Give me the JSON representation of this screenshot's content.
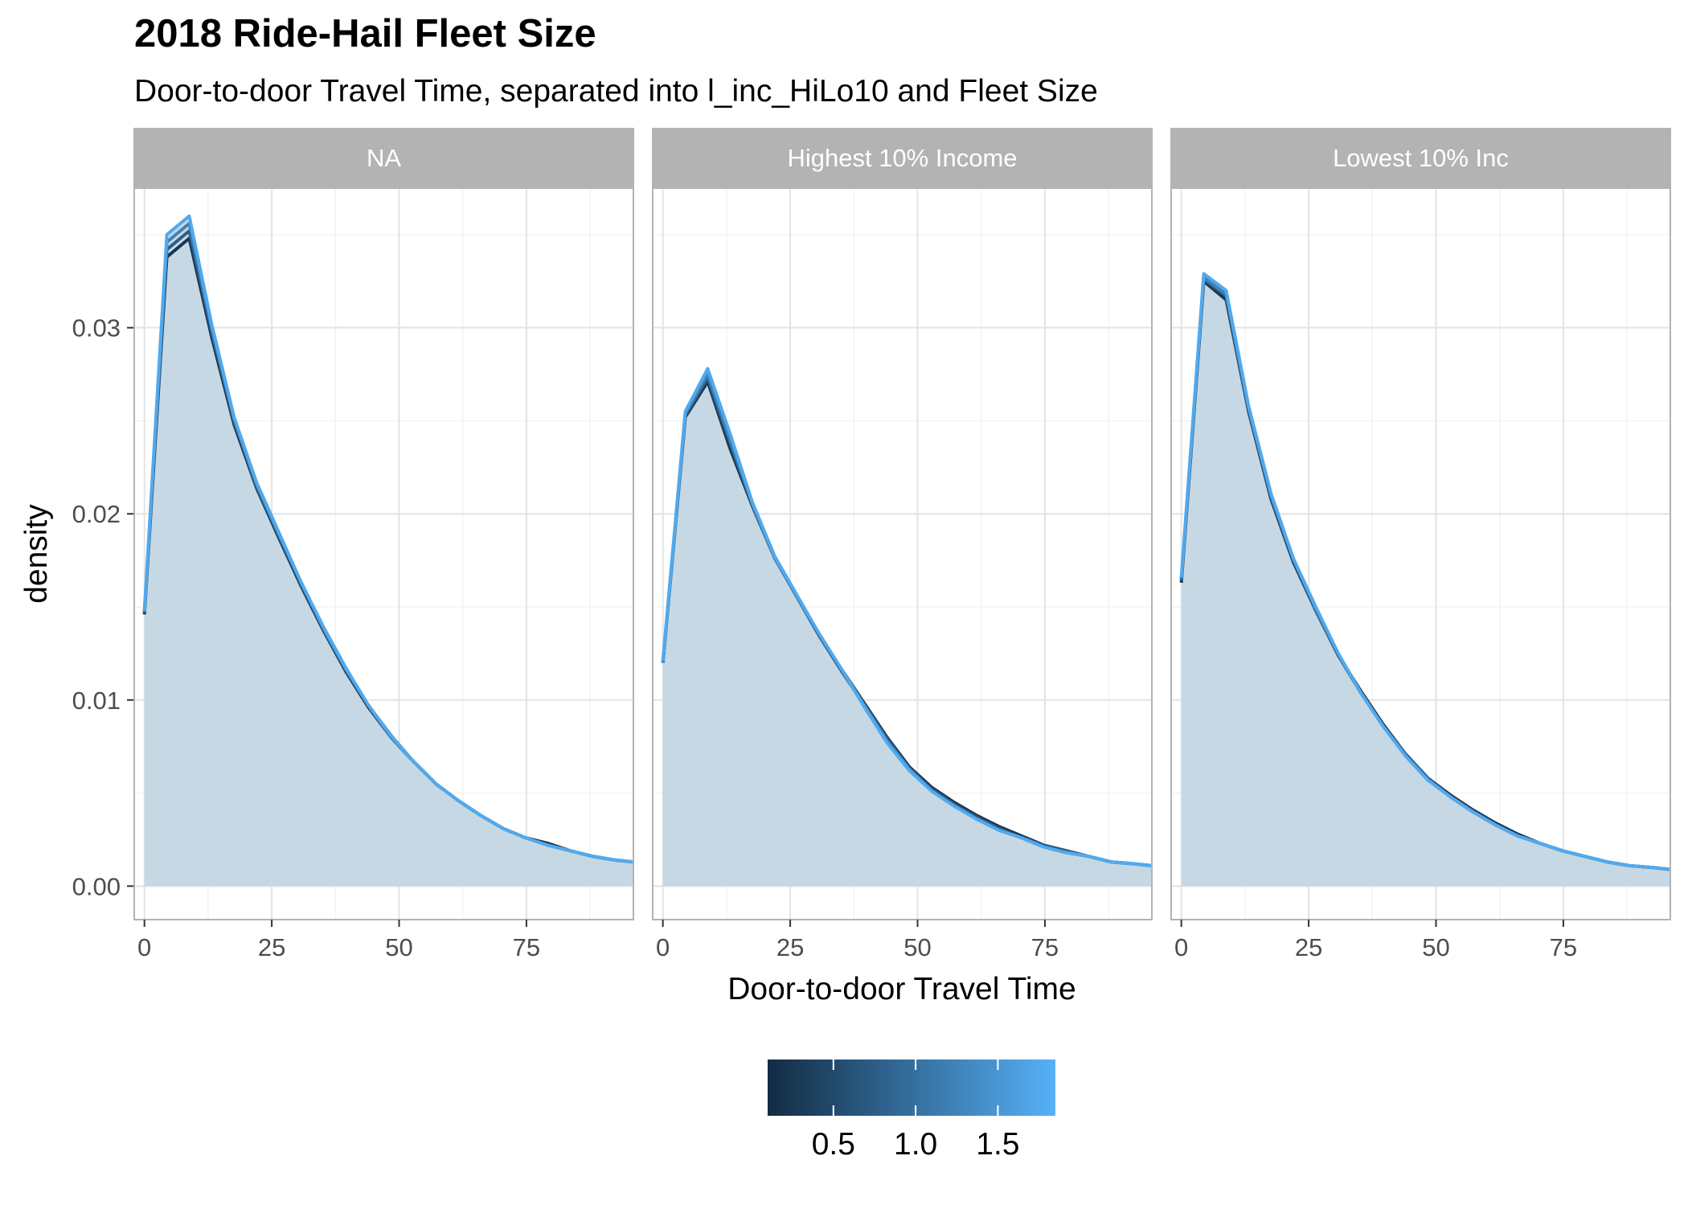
{
  "chart_data": {
    "type": "area",
    "title": "2018 Ride-Hail Fleet Size",
    "subtitle": "Door-to-door Travel Time, separated into l_inc_HiLo10 and Fleet Size",
    "xlabel": "Door-to-door Travel Time",
    "ylabel": "density",
    "xlim": [
      -2,
      96
    ],
    "ylim": [
      -0.0018,
      0.0375
    ],
    "x_ticks": [
      0,
      25,
      50,
      75
    ],
    "y_ticks": [
      0.0,
      0.01,
      0.02,
      0.03
    ],
    "x_tick_labels": [
      "0",
      "25",
      "50",
      "75"
    ],
    "y_tick_labels": [
      "0.00",
      "0.01",
      "0.02",
      "0.03"
    ],
    "grid": true,
    "fill_color": "#c6d8e4",
    "strip_color": "#b3b3b3",
    "panels": [
      {
        "label": "NA",
        "x": [
          0,
          4.4,
          8.8,
          13.2,
          17.6,
          22,
          26.4,
          30.8,
          35.2,
          39.6,
          44,
          48.4,
          52.8,
          57.2,
          61.6,
          66,
          70.4,
          74.8,
          79.2,
          83.6,
          88,
          92.4,
          96
        ],
        "series": [
          {
            "color_value": 0.25,
            "values": [
              0.0146,
              0.0338,
              0.0348,
              0.0295,
              0.0248,
              0.0214,
              0.0187,
              0.0161,
              0.0137,
              0.0115,
              0.0096,
              0.008,
              0.0067,
              0.0055,
              0.0046,
              0.0038,
              0.0031,
              0.0026,
              0.0023,
              0.0019,
              0.0016,
              0.0014,
              0.0013
            ]
          },
          {
            "color_value": 0.75,
            "values": [
              0.0147,
              0.0342,
              0.0352,
              0.0298,
              0.025,
              0.0215,
              0.0188,
              0.0162,
              0.0138,
              0.0116,
              0.0097,
              0.0081,
              0.0067,
              0.0055,
              0.0046,
              0.0038,
              0.0031,
              0.0026,
              0.0022,
              0.0019,
              0.0016,
              0.0014,
              0.0013
            ]
          },
          {
            "color_value": 1.25,
            "values": [
              0.0147,
              0.0346,
              0.0356,
              0.03,
              0.0251,
              0.0216,
              0.0189,
              0.0163,
              0.0138,
              0.0116,
              0.0097,
              0.008,
              0.0067,
              0.0055,
              0.0046,
              0.0038,
              0.0031,
              0.0026,
              0.0022,
              0.0019,
              0.0016,
              0.0014,
              0.0013
            ]
          },
          {
            "color_value": 1.75,
            "values": [
              0.0148,
              0.035,
              0.036,
              0.0302,
              0.0252,
              0.0217,
              0.019,
              0.0163,
              0.0139,
              0.0117,
              0.0097,
              0.0081,
              0.0067,
              0.0055,
              0.0046,
              0.0038,
              0.0031,
              0.0026,
              0.0022,
              0.0019,
              0.0016,
              0.0014,
              0.0013
            ]
          }
        ]
      },
      {
        "label": "Highest 10% Income",
        "x": [
          0,
          4.4,
          8.8,
          13.2,
          17.6,
          22,
          26.4,
          30.8,
          35.2,
          39.6,
          44,
          48.4,
          52.8,
          57.2,
          61.6,
          66,
          70.4,
          74.8,
          79.2,
          83.6,
          88,
          92.4,
          96
        ],
        "series": [
          {
            "color_value": 0.25,
            "values": [
              0.012,
              0.0252,
              0.0271,
              0.0235,
              0.0204,
              0.0176,
              0.0155,
              0.0134,
              0.0116,
              0.0098,
              0.008,
              0.0064,
              0.0053,
              0.0045,
              0.0038,
              0.0032,
              0.0027,
              0.0022,
              0.0019,
              0.0016,
              0.0013,
              0.0012,
              0.0011
            ]
          },
          {
            "color_value": 0.75,
            "values": [
              0.012,
              0.0253,
              0.0273,
              0.0238,
              0.0205,
              0.0176,
              0.0155,
              0.0134,
              0.0115,
              0.0097,
              0.0079,
              0.0063,
              0.0052,
              0.0044,
              0.0037,
              0.0031,
              0.0026,
              0.0022,
              0.0019,
              0.0016,
              0.0013,
              0.0012,
              0.0011
            ]
          },
          {
            "color_value": 1.25,
            "values": [
              0.012,
              0.0254,
              0.0275,
              0.024,
              0.0205,
              0.0176,
              0.0155,
              0.0135,
              0.0116,
              0.0097,
              0.0078,
              0.0063,
              0.0051,
              0.0043,
              0.0036,
              0.003,
              0.0026,
              0.0021,
              0.0018,
              0.0016,
              0.0013,
              0.0012,
              0.0011
            ]
          },
          {
            "color_value": 1.75,
            "values": [
              0.0121,
              0.0255,
              0.0278,
              0.0243,
              0.0206,
              0.0177,
              0.0156,
              0.0135,
              0.0116,
              0.0096,
              0.0077,
              0.0062,
              0.0051,
              0.0043,
              0.0036,
              0.003,
              0.0026,
              0.0021,
              0.0018,
              0.0016,
              0.0013,
              0.0012,
              0.0011
            ]
          }
        ]
      },
      {
        "label": "Lowest 10% Inc",
        "x": [
          0,
          4.4,
          8.8,
          13.2,
          17.6,
          22,
          26.4,
          30.8,
          35.2,
          39.6,
          44,
          48.4,
          52.8,
          57.2,
          61.6,
          66,
          70.4,
          74.8,
          79.2,
          83.6,
          88,
          92.4,
          96
        ],
        "series": [
          {
            "color_value": 0.25,
            "values": [
              0.0163,
              0.0325,
              0.0315,
              0.0255,
              0.0208,
              0.0174,
              0.0148,
              0.0124,
              0.0105,
              0.0087,
              0.0071,
              0.0058,
              0.0049,
              0.0041,
              0.0034,
              0.0028,
              0.0023,
              0.0019,
              0.0016,
              0.0013,
              0.0011,
              0.001,
              0.0009
            ]
          },
          {
            "color_value": 0.75,
            "values": [
              0.0164,
              0.0326,
              0.0317,
              0.0256,
              0.0209,
              0.0175,
              0.0148,
              0.0124,
              0.0104,
              0.0086,
              0.0071,
              0.0058,
              0.0048,
              0.004,
              0.0033,
              0.0027,
              0.0023,
              0.0019,
              0.0016,
              0.0013,
              0.0011,
              0.001,
              0.0009
            ]
          },
          {
            "color_value": 1.25,
            "values": [
              0.0165,
              0.0327,
              0.0318,
              0.0257,
              0.021,
              0.0176,
              0.0149,
              0.0125,
              0.0104,
              0.0086,
              0.007,
              0.0057,
              0.0048,
              0.004,
              0.0033,
              0.0027,
              0.0023,
              0.0019,
              0.0016,
              0.0013,
              0.0011,
              0.001,
              0.0009
            ]
          },
          {
            "color_value": 1.75,
            "values": [
              0.0166,
              0.0329,
              0.032,
              0.0258,
              0.0211,
              0.0176,
              0.015,
              0.0125,
              0.0104,
              0.0086,
              0.007,
              0.0057,
              0.0048,
              0.004,
              0.0033,
              0.0027,
              0.0023,
              0.0019,
              0.0016,
              0.0013,
              0.0011,
              0.001,
              0.0009
            ]
          }
        ]
      }
    ],
    "colorbar": {
      "range": [
        0.1,
        1.85
      ],
      "ticks": [
        0.5,
        1.0,
        1.5
      ],
      "tick_labels": [
        "0.5",
        "1.0",
        "1.5"
      ],
      "color_low": "#132b43",
      "color_high": "#56b1f7",
      "placement": "bottom"
    }
  }
}
